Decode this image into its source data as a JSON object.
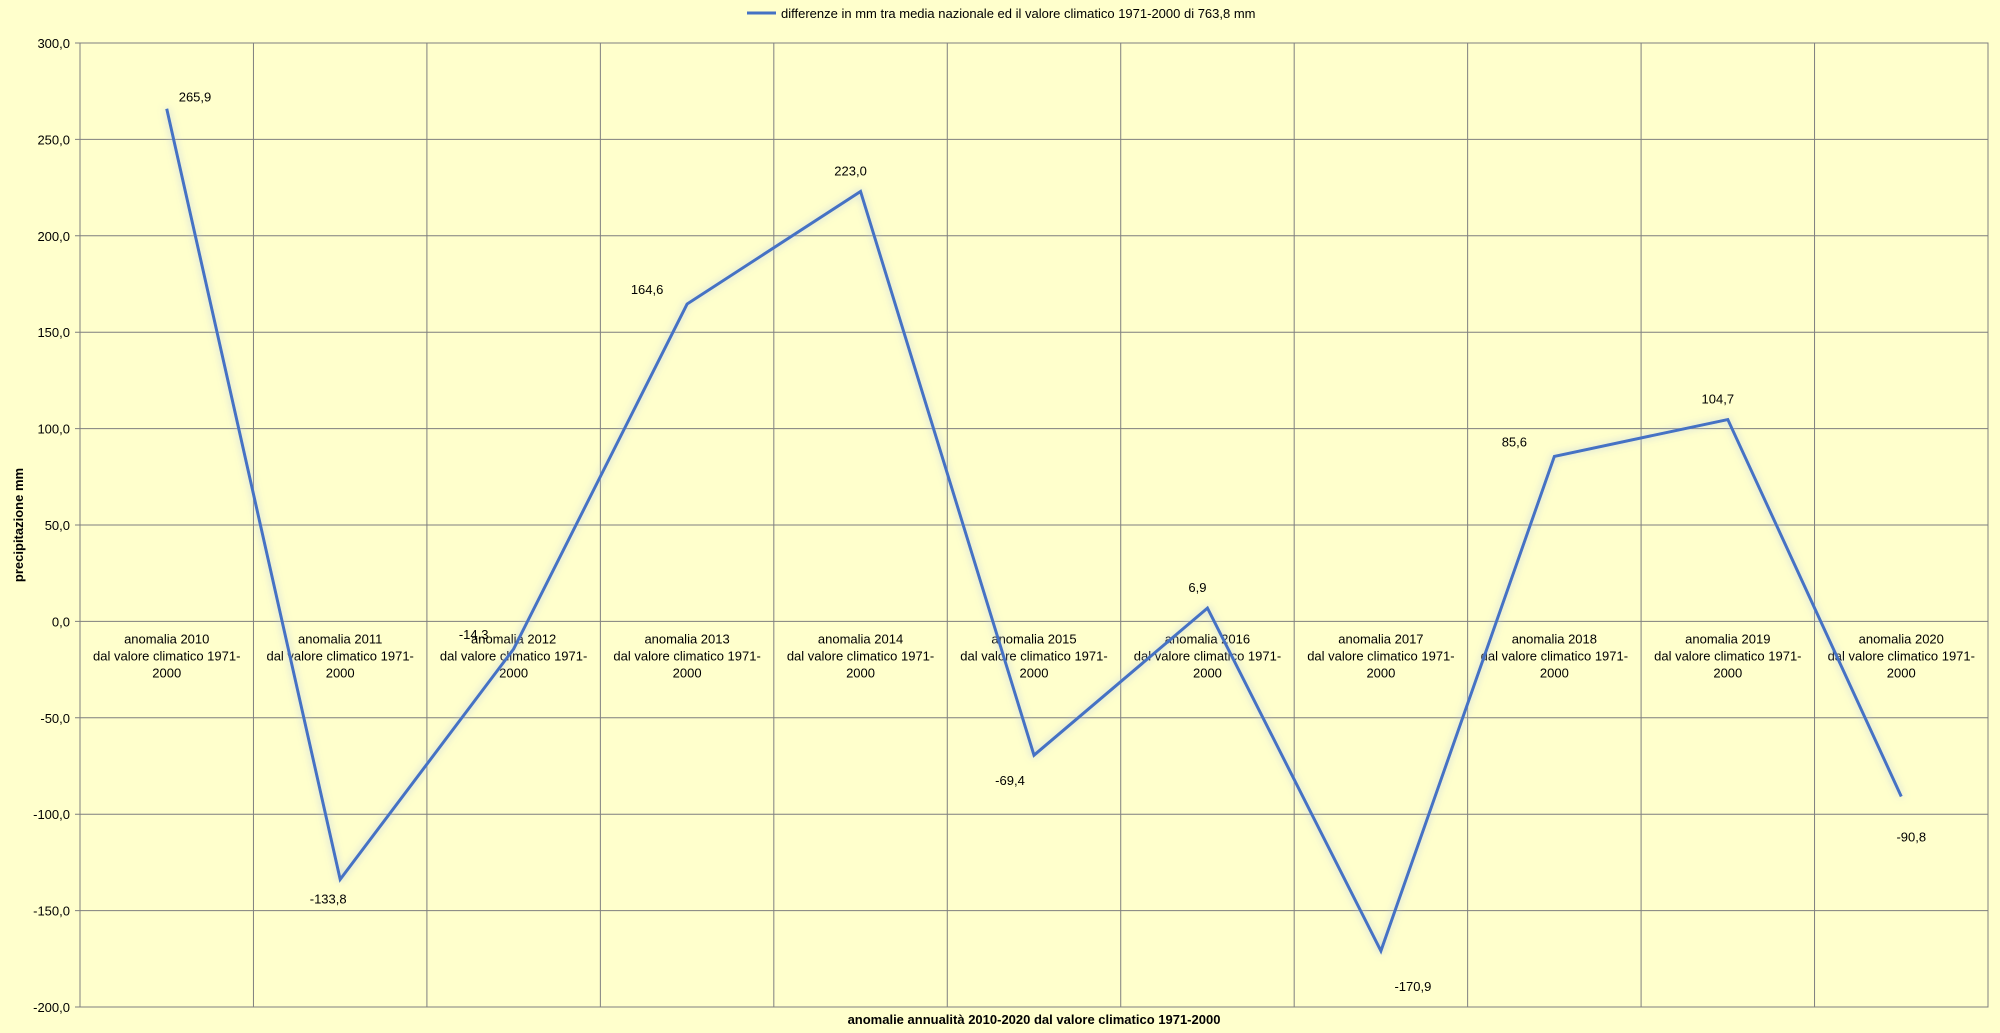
{
  "chart_data": {
    "type": "line",
    "legend_position": "top",
    "grid": true,
    "xlabel": "anomalie annualità 2010-2020 dal valore climatico 1971-2000",
    "ylabel": "precipitazione mm",
    "ylim": [
      -200,
      300
    ],
    "y_ticks": [
      "300,0",
      "250,0",
      "200,0",
      "150,0",
      "100,0",
      "50,0",
      "0,0",
      "-50,0",
      "-100,0",
      "-150,0",
      "-200,0"
    ],
    "categories": [
      [
        "anomalia 2010",
        "dal valore climatico 1971-",
        "2000"
      ],
      [
        "anomalia 2011",
        "dal valore climatico 1971-",
        "2000"
      ],
      [
        "anomalia 2012",
        "dal valore climatico 1971-",
        "2000"
      ],
      [
        "anomalia 2013",
        "dal valore climatico 1971-",
        "2000"
      ],
      [
        "anomalia 2014",
        "dal valore climatico 1971-",
        "2000"
      ],
      [
        "anomalia 2015",
        "dal valore climatico 1971-",
        "2000"
      ],
      [
        "anomalia 2016",
        "dal valore climatico 1971-",
        "2000"
      ],
      [
        "anomalia 2017",
        "dal valore climatico 1971-",
        "2000"
      ],
      [
        "anomalia 2018",
        "dal valore climatico 1971-",
        "2000"
      ],
      [
        "anomalia 2019",
        "dal valore climatico 1971-",
        "2000"
      ],
      [
        "anomalia 2020",
        "dal valore climatico 1971-",
        "2000"
      ]
    ],
    "series": [
      {
        "name": "differenze in mm tra media nazionale ed il valore climatico 1971-2000 di 763,8 mm",
        "color": "#4472c4",
        "values": [
          265.9,
          -133.8,
          -14.3,
          164.6,
          223.0,
          -69.4,
          6.9,
          -170.9,
          85.6,
          104.7,
          -90.8
        ],
        "data_labels": [
          "265,9",
          "-133,8",
          "-14,3",
          "164,6",
          "223,0",
          "-69,4",
          "6,9",
          "-170,9",
          "85,6",
          "104,7",
          "-90,8"
        ]
      }
    ]
  }
}
